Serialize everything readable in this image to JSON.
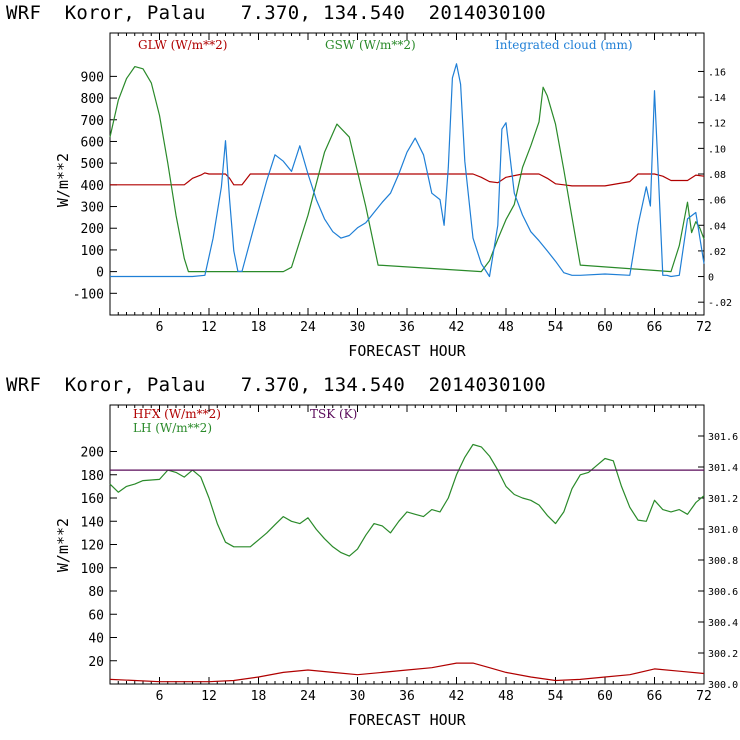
{
  "panels": [
    {
      "title": "WRF  Koror, Palau   7.370, 134.540  2014030100",
      "xlabel": "FORECAST HOUR",
      "ylabel": "W/m**2",
      "legend": [
        {
          "label": "GLW (W/m**2)",
          "color": "#b00000"
        },
        {
          "label": "GSW (W/m**2)",
          "color": "#2a8a2a"
        },
        {
          "label": "Integrated cloud (mm)",
          "color": "#1f7fd6"
        }
      ]
    },
    {
      "title": "WRF  Koror, Palau   7.370, 134.540  2014030100",
      "xlabel": "FORECAST HOUR",
      "ylabel": "W/m**2",
      "legend": [
        {
          "label": "HFX (W/m**2)",
          "color": "#b00000"
        },
        {
          "label": "LH  (W/m**2)",
          "color": "#2a8a2a"
        },
        {
          "label": "TSK (K)",
          "color": "#5a0a5a"
        }
      ]
    }
  ],
  "chart_data": [
    {
      "type": "line",
      "xlim": [
        0,
        72
      ],
      "ylim": [
        -200,
        1100
      ],
      "y2lim": [
        -0.03,
        0.19
      ],
      "x_ticks": [
        6,
        12,
        18,
        24,
        30,
        36,
        42,
        48,
        54,
        60,
        66,
        72
      ],
      "y_ticks": [
        -100,
        0,
        100,
        200,
        300,
        400,
        500,
        600,
        700,
        800,
        900
      ],
      "y2_ticks": [
        -0.02,
        0,
        0.02,
        0.04,
        0.06,
        0.08,
        0.1,
        0.12,
        0.14,
        0.16
      ],
      "y2_tick_labels": [
        "-.02",
        "0",
        ".02",
        ".04",
        ".06",
        ".08",
        ".10",
        ".12",
        ".14",
        ".16"
      ],
      "series": [
        {
          "name": "GLW (W/m**2)",
          "axis": "left",
          "color": "#b00000",
          "x": [
            0,
            9,
            9.5,
            10,
            11,
            11.5,
            12,
            13,
            14,
            14.5,
            15,
            16,
            17,
            24,
            30,
            36,
            42,
            44,
            45,
            46,
            47,
            48,
            50,
            52,
            53,
            54,
            55,
            56,
            57,
            60,
            63,
            64,
            66,
            67,
            68,
            70,
            71,
            72
          ],
          "y": [
            400,
            400,
            415,
            430,
            445,
            455,
            450,
            450,
            450,
            430,
            400,
            400,
            450,
            450,
            450,
            450,
            450,
            450,
            435,
            415,
            410,
            435,
            450,
            450,
            430,
            405,
            400,
            395,
            395,
            395,
            415,
            450,
            450,
            440,
            420,
            420,
            445,
            440
          ]
        },
        {
          "name": "GSW (W/m**2)",
          "axis": "left",
          "color": "#2a8a2a",
          "x": [
            0,
            1,
            2,
            3,
            4,
            5,
            6,
            7,
            8,
            9,
            9.5,
            21,
            22,
            24,
            26,
            27.5,
            29,
            31,
            32.5,
            45,
            46,
            47,
            48,
            49,
            50,
            51,
            52,
            52.5,
            53,
            54,
            55,
            56,
            57,
            68,
            69,
            70,
            70.5,
            71,
            71.5,
            72
          ],
          "y": [
            620,
            790,
            890,
            945,
            935,
            870,
            720,
            500,
            260,
            60,
            0,
            0,
            20,
            260,
            550,
            680,
            620,
            300,
            30,
            0,
            50,
            150,
            240,
            310,
            480,
            580,
            690,
            850,
            810,
            680,
            470,
            250,
            30,
            0,
            120,
            320,
            180,
            230,
            200,
            150
          ]
        },
        {
          "name": "Integrated cloud (mm)",
          "axis": "right",
          "color": "#1f7fd6",
          "x": [
            0,
            10,
            11.5,
            12.5,
            13.5,
            14,
            14.5,
            15,
            15.5,
            16,
            17.5,
            19,
            20,
            21,
            22,
            23,
            24,
            25,
            26,
            27,
            28,
            29,
            30,
            31,
            32,
            33,
            34,
            35,
            36,
            37,
            38,
            39,
            40,
            40.5,
            41,
            41.5,
            42,
            42.5,
            43,
            44,
            45,
            46,
            47,
            47.5,
            48,
            49,
            50,
            51,
            52,
            53,
            54,
            55,
            56,
            57,
            60,
            63,
            64,
            65,
            65.5,
            66,
            66.5,
            67,
            67.5,
            68,
            69,
            70,
            71,
            71.5,
            72
          ],
          "y": [
            0,
            0,
            0.001,
            0.03,
            0.07,
            0.106,
            0.06,
            0.02,
            0.004,
            0.004,
            0.04,
            0.075,
            0.095,
            0.09,
            0.082,
            0.102,
            0.08,
            0.06,
            0.045,
            0.035,
            0.03,
            0.032,
            0.038,
            0.042,
            0.05,
            0.058,
            0.065,
            0.08,
            0.097,
            0.108,
            0.095,
            0.065,
            0.06,
            0.04,
            0.085,
            0.155,
            0.166,
            0.15,
            0.09,
            0.03,
            0.01,
            0,
            0.04,
            0.115,
            0.12,
            0.065,
            0.048,
            0.035,
            0.028,
            0.02,
            0.012,
            0.003,
            0.001,
            0.001,
            0.002,
            0.001,
            0.04,
            0.07,
            0.055,
            0.145,
            0.075,
            0.001,
            0.001,
            0,
            0.001,
            0.045,
            0.05,
            0.03,
            0.01
          ]
        }
      ]
    },
    {
      "type": "line",
      "xlim": [
        0,
        72
      ],
      "ylim": [
        0,
        240
      ],
      "y2lim": [
        300,
        301.8
      ],
      "x_ticks": [
        6,
        12,
        18,
        24,
        30,
        36,
        42,
        48,
        54,
        60,
        66,
        72
      ],
      "y_ticks": [
        20,
        40,
        60,
        80,
        100,
        120,
        140,
        160,
        180,
        200
      ],
      "y2_ticks": [
        300.0,
        300.2,
        300.4,
        300.6,
        300.8,
        301.0,
        301.2,
        301.4,
        301.6
      ],
      "y2_tick_labels": [
        "300.0",
        "300.2",
        "300.4",
        "300.6",
        "300.8",
        "301.0",
        "301.2",
        "301.4",
        "301.6"
      ],
      "series": [
        {
          "name": "HFX (W/m**2)",
          "axis": "left",
          "color": "#b00000",
          "x": [
            0,
            3,
            6,
            9,
            12,
            15,
            18,
            21,
            24,
            27,
            30,
            33,
            36,
            39,
            42,
            44,
            46,
            48,
            51,
            54,
            57,
            60,
            63,
            66,
            69,
            72
          ],
          "y": [
            4,
            3,
            2,
            2,
            2,
            3,
            6,
            10,
            12,
            10,
            8,
            10,
            12,
            14,
            18,
            18,
            14,
            10,
            6,
            3,
            4,
            6,
            8,
            13,
            11,
            9
          ]
        },
        {
          "name": "LH  (W/m**2)",
          "axis": "left",
          "color": "#2a8a2a",
          "x": [
            0,
            1,
            2,
            3,
            4,
            6,
            7,
            8,
            9,
            10,
            11,
            12,
            13,
            14,
            15,
            17,
            18,
            19,
            20,
            21,
            22,
            23,
            24,
            25,
            26,
            27,
            28,
            29,
            30,
            31,
            32,
            33,
            34,
            35,
            36,
            37,
            38,
            39,
            40,
            41,
            42,
            43,
            44,
            45,
            46,
            47,
            48,
            49,
            50,
            51,
            52,
            53,
            54,
            55,
            56,
            57,
            58,
            59,
            60,
            61,
            62,
            63,
            64,
            65,
            66,
            67,
            68,
            69,
            70,
            71,
            72
          ],
          "y": [
            172,
            165,
            170,
            172,
            175,
            176,
            184,
            182,
            178,
            184,
            178,
            160,
            138,
            122,
            118,
            118,
            124,
            130,
            137,
            144,
            140,
            138,
            143,
            133,
            125,
            118,
            113,
            110,
            116,
            128,
            138,
            136,
            130,
            140,
            148,
            146,
            144,
            150,
            148,
            160,
            180,
            195,
            206,
            204,
            196,
            184,
            170,
            163,
            160,
            158,
            154,
            145,
            138,
            148,
            168,
            180,
            182,
            188,
            194,
            192,
            170,
            152,
            141,
            140,
            158,
            150,
            148,
            150,
            146,
            156,
            162
          ]
        },
        {
          "name": "TSK (K)",
          "axis": "right",
          "color": "#5a0a5a",
          "x": [
            0,
            72
          ],
          "y": [
            301.38,
            301.38
          ]
        }
      ]
    }
  ]
}
